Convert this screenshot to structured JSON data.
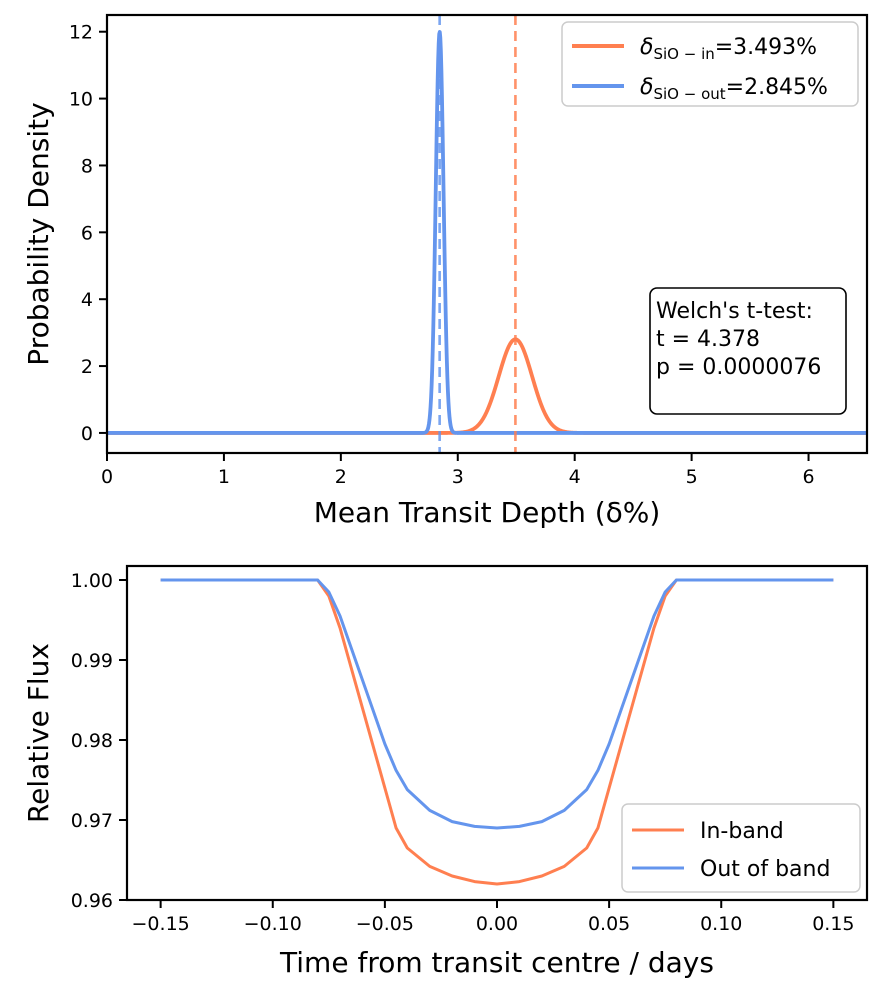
{
  "chart_data": [
    {
      "type": "line",
      "title": "",
      "xlabel": "Mean Transit Depth (δ%)",
      "ylabel": "Probability Density",
      "xlim": [
        0,
        6.5
      ],
      "ylim": [
        -0.6,
        12.5
      ],
      "xticks": [
        "0",
        "1",
        "2",
        "3",
        "4",
        "5",
        "6"
      ],
      "yticks": [
        "0",
        "2",
        "4",
        "6",
        "8",
        "10",
        "12"
      ],
      "series": [
        {
          "name": "SiO-in",
          "color": "#FF7F50",
          "distribution": "gaussian",
          "mean": 3.493,
          "peak_density": 2.8,
          "legend_symbol": "δ",
          "legend_subscript": "SiO − in",
          "legend_value": "=3.493%"
        },
        {
          "name": "SiO-out",
          "color": "#6495ED",
          "distribution": "gaussian",
          "mean": 2.845,
          "peak_density": 12.0,
          "legend_symbol": "δ",
          "legend_subscript": "SiO − out",
          "legend_value": "=2.845%"
        }
      ],
      "vlines": [
        {
          "x": 2.845,
          "color": "#6495ED",
          "style": "dashed"
        },
        {
          "x": 3.493,
          "color": "#FF7F50",
          "style": "dashed"
        }
      ],
      "annotation": {
        "lines": [
          "Welch's t-test:",
          "t = 4.378",
          "p = 0.0000076"
        ],
        "placement": "right"
      },
      "legend_placement": "top-right"
    },
    {
      "type": "line",
      "title": "",
      "xlabel": "Time from transit centre / days",
      "ylabel": "Relative Flux",
      "xlim": [
        -0.165,
        0.165
      ],
      "ylim": [
        0.96,
        1.0
      ],
      "xticks": [
        "−0.15",
        "−0.10",
        "−0.05",
        "0.00",
        "0.05",
        "0.10",
        "0.15"
      ],
      "yticks": [
        "0.96",
        "0.97",
        "0.98",
        "0.99",
        "1.00"
      ],
      "series": [
        {
          "name": "In-band",
          "color": "#FF7F50",
          "x": [
            -0.15,
            -0.08,
            -0.075,
            -0.07,
            -0.065,
            -0.06,
            -0.055,
            -0.05,
            -0.045,
            -0.04,
            -0.03,
            -0.02,
            -0.01,
            0.0,
            0.01,
            0.02,
            0.03,
            0.04,
            0.045,
            0.05,
            0.055,
            0.06,
            0.065,
            0.07,
            0.075,
            0.08,
            0.15
          ],
          "y": [
            1.0,
            1.0,
            0.998,
            0.994,
            0.989,
            0.984,
            0.979,
            0.974,
            0.969,
            0.9665,
            0.9642,
            0.963,
            0.9623,
            0.962,
            0.9623,
            0.963,
            0.9642,
            0.9665,
            0.969,
            0.974,
            0.979,
            0.984,
            0.989,
            0.994,
            0.998,
            1.0,
            1.0
          ]
        },
        {
          "name": "Out of band",
          "color": "#6495ED",
          "x": [
            -0.15,
            -0.08,
            -0.075,
            -0.07,
            -0.065,
            -0.06,
            -0.055,
            -0.05,
            -0.045,
            -0.04,
            -0.03,
            -0.02,
            -0.01,
            0.0,
            0.01,
            0.02,
            0.03,
            0.04,
            0.045,
            0.05,
            0.055,
            0.06,
            0.065,
            0.07,
            0.075,
            0.08,
            0.15
          ],
          "y": [
            1.0,
            1.0,
            0.9985,
            0.9955,
            0.9915,
            0.9875,
            0.9835,
            0.9795,
            0.9762,
            0.9738,
            0.9712,
            0.9698,
            0.9692,
            0.969,
            0.9692,
            0.9698,
            0.9712,
            0.9738,
            0.9762,
            0.9795,
            0.9835,
            0.9875,
            0.9915,
            0.9955,
            0.9985,
            1.0,
            1.0
          ]
        }
      ],
      "legend_placement": "bottom-right"
    }
  ]
}
